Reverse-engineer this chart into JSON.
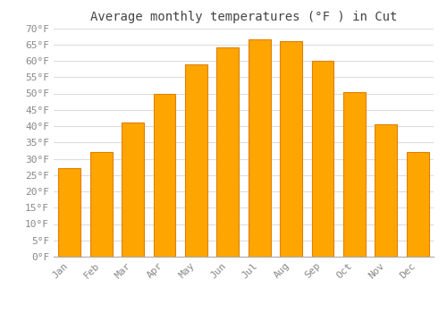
{
  "title": "Average monthly temperatures (°F ) in Cut",
  "months": [
    "Jan",
    "Feb",
    "Mar",
    "Apr",
    "May",
    "Jun",
    "Jul",
    "Aug",
    "Sep",
    "Oct",
    "Nov",
    "Dec"
  ],
  "values": [
    27,
    32,
    41,
    50,
    59,
    64,
    66.5,
    66,
    60,
    50.5,
    40.5,
    32
  ],
  "bar_color": "#FFA500",
  "bar_edge_color": "#E08000",
  "background_color": "#ffffff",
  "grid_color": "#dddddd",
  "tick_color": "#888888",
  "title_color": "#444444",
  "ylim": [
    0,
    70
  ],
  "yticks": [
    0,
    5,
    10,
    15,
    20,
    25,
    30,
    35,
    40,
    45,
    50,
    55,
    60,
    65,
    70
  ],
  "title_fontsize": 10,
  "tick_fontsize": 8,
  "bar_width": 0.7
}
